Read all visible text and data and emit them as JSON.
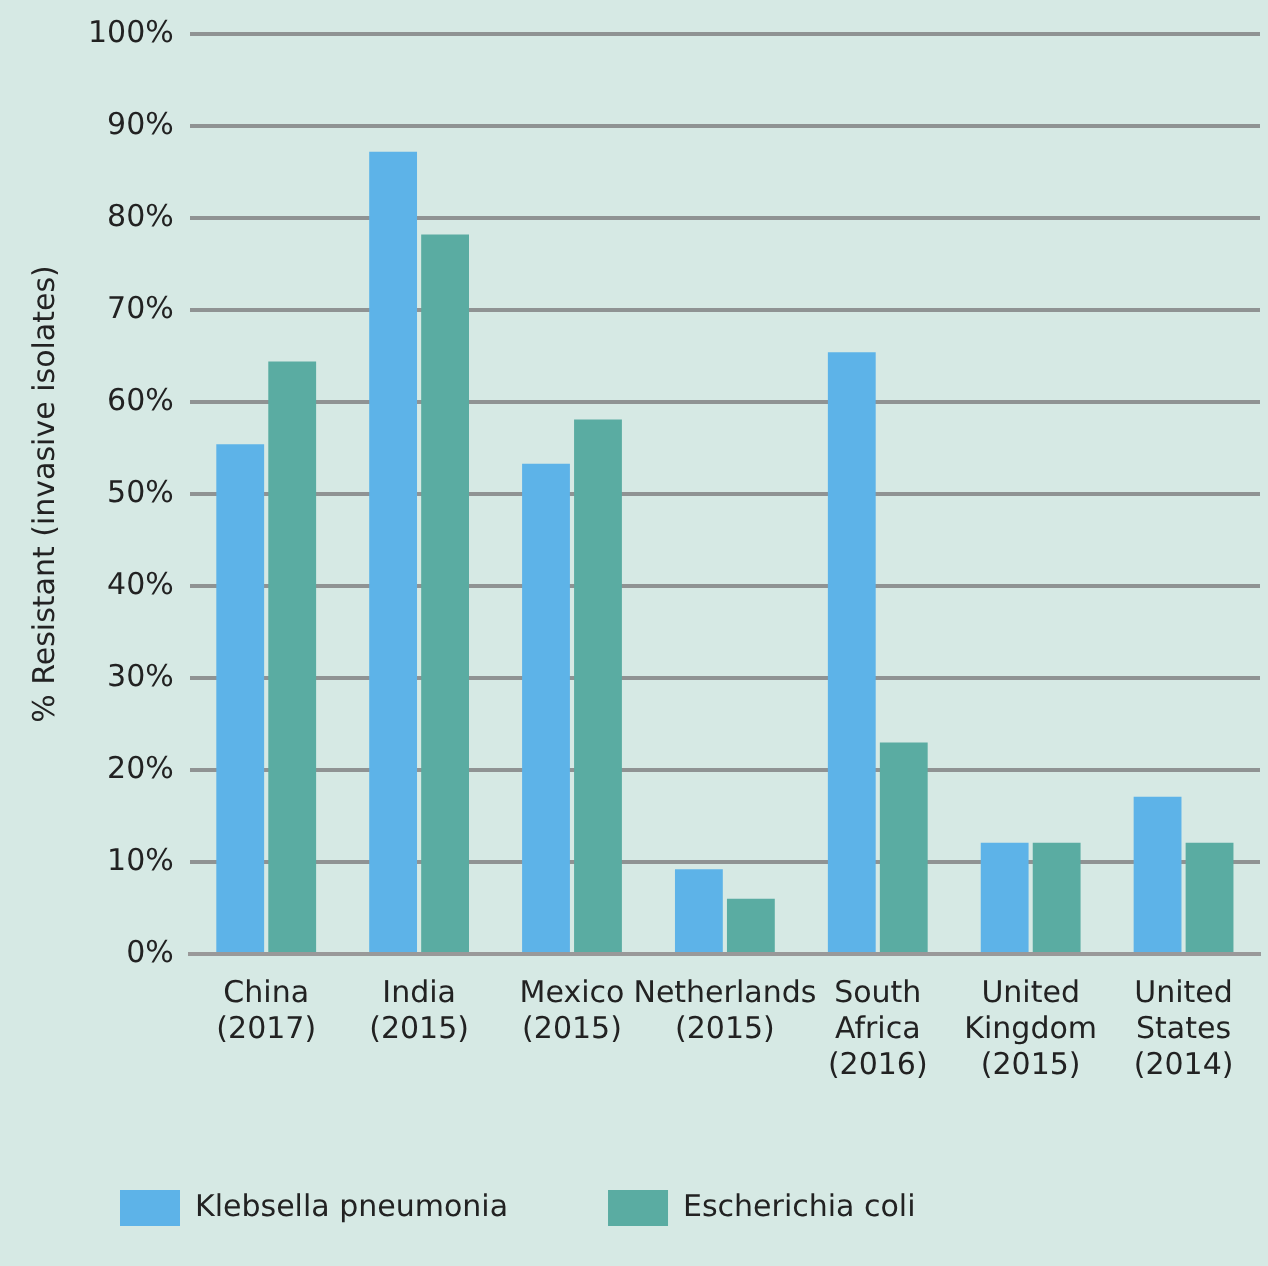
{
  "chart_data": {
    "type": "bar",
    "ylabel": "% Resistant (invasive isolates)",
    "categories": [
      "China\n(2017)",
      "India\n(2015)",
      "Mexico\n(2015)",
      "Netherlands\n(2015)",
      "South\nAfrica\n(2016)",
      "United\nKingdom\n(2015)",
      "United\nStates\n(2014)"
    ],
    "series": [
      {
        "name": "Klebsella pneumonia",
        "color": "#5db3e8",
        "values": [
          55.4,
          87.2,
          53.3,
          9.2,
          65.4,
          12.1,
          17.1
        ]
      },
      {
        "name": "Escherichia coli",
        "color": "#5aaca2",
        "values": [
          64.4,
          78.2,
          58.1,
          6.0,
          23.0,
          12.1,
          12.1
        ]
      }
    ],
    "ylim": [
      0,
      100
    ],
    "yticks": [
      {
        "value": 0,
        "label": "0%"
      },
      {
        "value": 10,
        "label": "10%"
      },
      {
        "value": 20,
        "label": "20%"
      },
      {
        "value": 30,
        "label": "30%"
      },
      {
        "value": 40,
        "label": "40%"
      },
      {
        "value": 50,
        "label": "50%"
      },
      {
        "value": 60,
        "label": "60%"
      },
      {
        "value": 70,
        "label": "70%"
      },
      {
        "value": 80,
        "label": "80%"
      },
      {
        "value": 90,
        "label": "90%"
      },
      {
        "value": 100,
        "label": "100%"
      }
    ],
    "grid": "y",
    "legend": "bottom left"
  }
}
